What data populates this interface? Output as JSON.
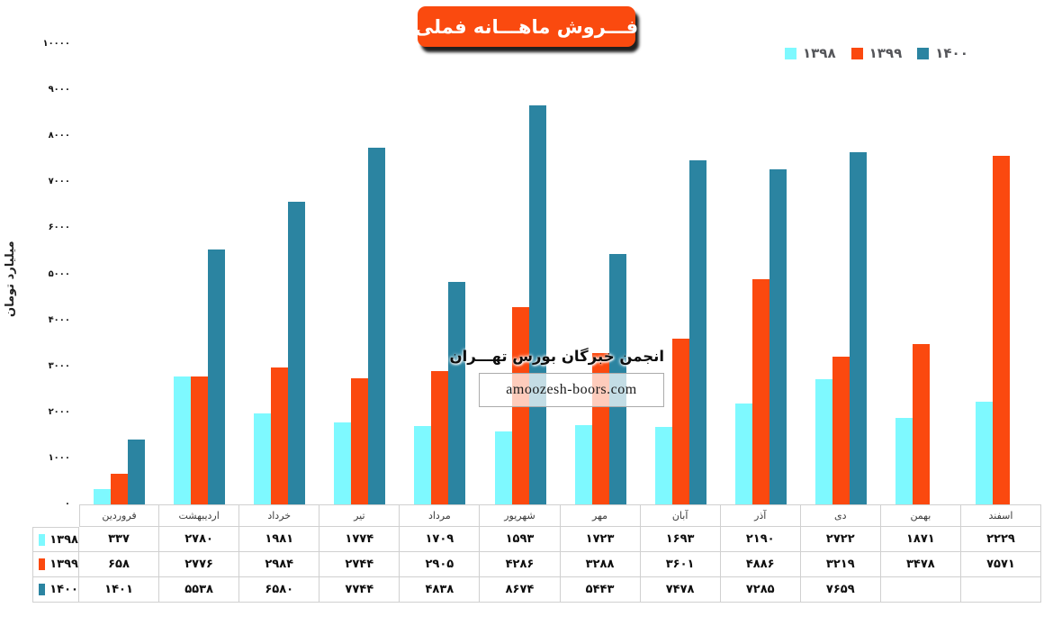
{
  "title": "فـــروش ماهـــانه فملی",
  "watermark": {
    "line1": "انجمن خبرگان بورس تهـــران",
    "line2": "amoozesh-boors.com"
  },
  "colors": {
    "title_bg": "#FA4A0F",
    "series_1398": "#7EF9FF",
    "series_1399": "#FB490F",
    "series_1400": "#2B84A1",
    "axis_line": "#D9D9D9",
    "table_border": "#D0D0D0",
    "legend_text": "#55565A"
  },
  "chart_data": {
    "type": "bar",
    "title": "فـــروش ماهـــانه فملی",
    "xlabel": "",
    "ylabel": "میلیارد تومان",
    "ylim": [
      0,
      10000
    ],
    "ytick_step": 1000,
    "grid": false,
    "legend_position": "top-right",
    "numeral_system": "persian",
    "categories": [
      "فروردین",
      "اردیبهشت",
      "خرداد",
      "تیر",
      "مرداد",
      "شهریور",
      "مهر",
      "آبان",
      "آذر",
      "دی",
      "بهمن",
      "اسفند"
    ],
    "series": [
      {
        "name": "۱۳۹۸",
        "color": "#7EF9FF",
        "values": [
          337,
          2780,
          1981,
          1774,
          1709,
          1593,
          1723,
          1693,
          2190,
          2722,
          1871,
          2229
        ]
      },
      {
        "name": "۱۳۹۹",
        "color": "#FB490F",
        "values": [
          658,
          2776,
          2984,
          2744,
          2905,
          4286,
          3288,
          3601,
          4886,
          3219,
          3478,
          7571
        ]
      },
      {
        "name": "۱۴۰۰",
        "color": "#2B84A1",
        "values": [
          1401,
          5538,
          6580,
          7744,
          4838,
          8674,
          5443,
          7478,
          7285,
          7659,
          null,
          null
        ]
      }
    ]
  }
}
